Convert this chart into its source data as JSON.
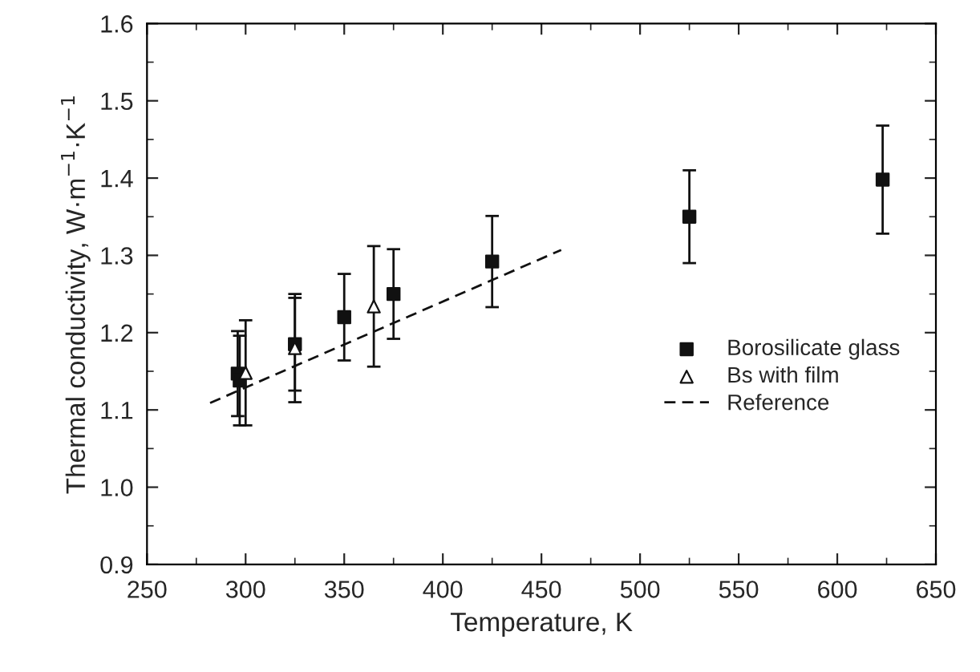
{
  "chart_data": {
    "type": "scatter",
    "xlabel": "Temperature, K",
    "ylabel": "Thermal conductivity, W·m$^{−1}$·K$^{−1}$",
    "xlim": [
      250,
      650
    ],
    "xticks": [
      250,
      300,
      350,
      400,
      450,
      500,
      550,
      600,
      650
    ],
    "ylim": [
      0.9,
      1.6
    ],
    "yticks": [
      0.9,
      {
        "value": 1,
        "label": "1.0"
      },
      1.1,
      1.2,
      1.3,
      1.4,
      1.5,
      1.6
    ],
    "grid": false,
    "legend": "bottom right",
    "series": [
      {
        "name": "Borosilicate glass",
        "marker": "square",
        "color": "#111111",
        "x": [
          296,
          297,
          325,
          350,
          375,
          425,
          525,
          623
        ],
        "values": [
          1.147,
          1.138,
          1.185,
          1.22,
          1.25,
          1.292,
          1.35,
          1.398
        ],
        "errors": [
          0.055,
          0.058,
          0.06,
          0.056,
          0.058,
          0.059,
          0.06,
          0.07
        ]
      },
      {
        "name": "Bs with film",
        "marker": "triangle",
        "color": "#111111",
        "x": [
          300,
          325,
          365
        ],
        "values": [
          1.148,
          1.18,
          1.234
        ],
        "errors": [
          0.068,
          0.07,
          0.078
        ]
      },
      {
        "name": "Reference",
        "type": "line",
        "marker": "none",
        "line_style": "dashed",
        "color": "#111111",
        "x": [
          282,
          460
        ],
        "values": [
          1.109,
          1.307
        ]
      }
    ]
  }
}
